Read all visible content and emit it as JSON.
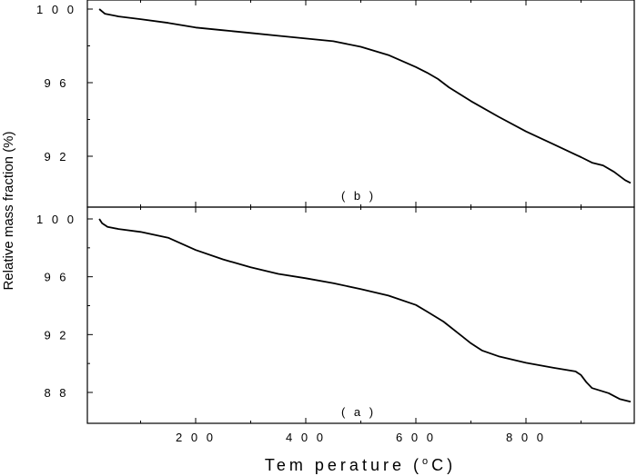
{
  "chart_data": {
    "type": "line",
    "xlabel_parts": {
      "before": "Tem perature (",
      "degree": "o",
      "after": "C)"
    },
    "ylabel": "Relative mass fraction (%)",
    "xlim": [
      20,
      1000
    ],
    "xticks": [
      200,
      400,
      600,
      800
    ],
    "xtick_labels": [
      "2 0 0",
      "4 0 0",
      "6 0 0",
      "8 0 0"
    ],
    "panels": [
      {
        "label": "( b )",
        "ylim": [
          90.2,
          100.4
        ],
        "yticks": [
          92,
          96,
          100
        ],
        "ytick_labels": [
          "9 2",
          "9 6",
          "1 0 0"
        ],
        "series": [
          {
            "x": [
              25,
              35,
              60,
              100,
              150,
              200,
              250,
              300,
              350,
              400,
              450,
              500,
              550,
              600,
              620,
              640,
              660,
              700,
              750,
              800,
              850,
              900,
              920,
              940,
              960,
              980,
              990
            ],
            "y": [
              100.0,
              99.75,
              99.6,
              99.45,
              99.25,
              99.0,
              98.85,
              98.7,
              98.55,
              98.4,
              98.25,
              97.95,
              97.5,
              96.85,
              96.55,
              96.2,
              95.75,
              95.0,
              94.15,
              93.35,
              92.65,
              91.95,
              91.65,
              91.5,
              91.15,
              90.7,
              90.55
            ]
          }
        ]
      },
      {
        "label": "( a )",
        "ylim": [
          86.0,
          100.4
        ],
        "yticks": [
          88,
          92,
          96,
          100
        ],
        "ytick_labels": [
          "8 8",
          "9 2",
          "9 6",
          "1 0 0"
        ],
        "series": [
          {
            "x": [
              25,
              30,
              40,
              60,
              100,
              150,
              200,
              250,
              300,
              350,
              400,
              450,
              500,
              550,
              600,
              620,
              650,
              680,
              700,
              720,
              750,
              800,
              850,
              890,
              900,
              910,
              920,
              950,
              970,
              990
            ],
            "y": [
              100.0,
              99.7,
              99.45,
              99.3,
              99.1,
              98.7,
              97.85,
              97.2,
              96.65,
              96.2,
              95.9,
              95.55,
              95.15,
              94.7,
              94.05,
              93.6,
              92.9,
              92.0,
              91.4,
              90.9,
              90.5,
              90.05,
              89.7,
              89.45,
              89.2,
              88.7,
              88.3,
              87.95,
              87.55,
              87.35
            ]
          }
        ]
      }
    ]
  }
}
